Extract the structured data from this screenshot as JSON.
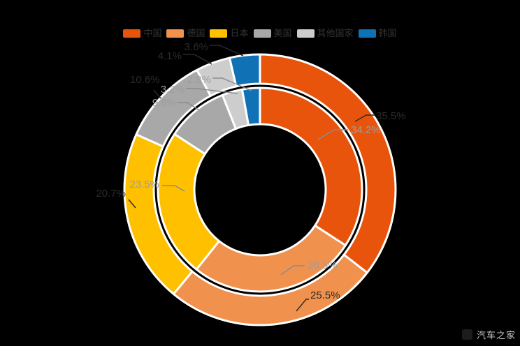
{
  "background": "#000000",
  "legend": {
    "items": [
      {
        "label": "中国",
        "color": "#E8540C"
      },
      {
        "label": "德国",
        "color": "#F0914D"
      },
      {
        "label": "日本",
        "color": "#FFC000"
      },
      {
        "label": "美国",
        "color": "#A8A8A8"
      },
      {
        "label": "其他国家",
        "color": "#CDCDCD"
      },
      {
        "label": "韩国",
        "color": "#1171B5"
      }
    ]
  },
  "chart_data": {
    "type": "pie",
    "subtype": "nested-donut",
    "title": "",
    "categories": [
      "中国",
      "德国",
      "日本",
      "美国",
      "其他国家",
      "韩国"
    ],
    "colors": [
      "#E8540C",
      "#F0914D",
      "#FFC000",
      "#A8A8A8",
      "#CDCDCD",
      "#1171B5"
    ],
    "series": [
      {
        "name": "外环",
        "ring": "outer",
        "values": [
          35.5,
          25.5,
          20.7,
          10.6,
          4.1,
          3.6
        ]
      },
      {
        "name": "内环",
        "ring": "inner",
        "values": [
          34.2,
          26.5,
          23.5,
          9.8,
          3.2,
          2.8
        ]
      }
    ],
    "label_format": "percent-one-decimal",
    "legend_position": "top",
    "start_angle_deg": 0,
    "direction": "clockwise",
    "border_color": "#ffffff",
    "inner_label_color": "#9d9d9d",
    "outer_label_color": "#2b2b2b"
  },
  "watermark": {
    "text": "汽车之家"
  }
}
